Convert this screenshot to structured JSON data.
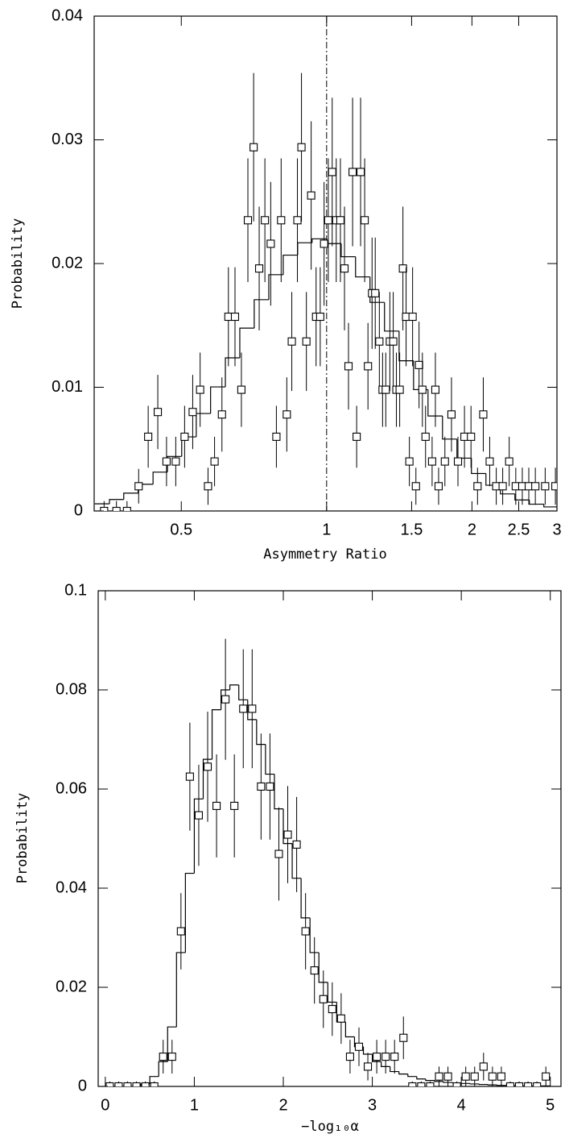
{
  "chart_data": [
    {
      "type": "errorbar",
      "xscale": "log",
      "x_label": "Asymmetry Ratio",
      "y_label": "Probability",
      "color": "#000000",
      "xlim": [
        0.33,
        3
      ],
      "ylim": [
        0,
        0.04
      ],
      "xticks": [
        0.5,
        1,
        1.5,
        2,
        2.5,
        3
      ],
      "yticks": [
        0,
        0.01,
        0.02,
        0.03,
        0.04
      ],
      "vline": 1,
      "x": [
        0.346,
        0.367,
        0.386,
        0.408,
        0.427,
        0.447,
        0.466,
        0.487,
        0.508,
        0.528,
        0.547,
        0.568,
        0.586,
        0.607,
        0.626,
        0.646,
        0.666,
        0.687,
        0.706,
        0.725,
        0.745,
        0.766,
        0.787,
        0.805,
        0.827,
        0.847,
        0.87,
        0.887,
        0.908,
        0.929,
        0.951,
        0.97,
        0.988,
        1.008,
        1.027,
        1.047,
        1.068,
        1.089,
        1.11,
        1.132,
        1.154,
        1.176,
        1.199,
        1.218,
        1.242,
        1.261,
        1.286,
        1.306,
        1.326,
        1.352,
        1.374,
        1.395,
        1.417,
        1.439,
        1.461,
        1.484,
        1.507,
        1.531,
        1.554,
        1.579,
        1.603,
        1.654,
        1.68,
        1.706,
        1.758,
        1.814,
        1.871,
        1.93,
        1.991,
        2.054,
        2.111,
        2.177,
        2.246,
        2.316,
        2.389,
        2.465,
        2.543,
        2.623,
        2.706,
        2.836,
        2.978
      ],
      "values": [
        0,
        0,
        0,
        0.002,
        0.006,
        0.008,
        0.004,
        0.004,
        0.006,
        0.008,
        0.0098,
        0.002,
        0.004,
        0.0078,
        0.0157,
        0.0157,
        0.0098,
        0.0235,
        0.0294,
        0.0196,
        0.0235,
        0.0216,
        0.006,
        0.0235,
        0.0078,
        0.0137,
        0.0235,
        0.0294,
        0.0137,
        0.0255,
        0.0157,
        0.0157,
        0.0216,
        0.0235,
        0.0274,
        0.0235,
        0.0235,
        0.0196,
        0.0117,
        0.0274,
        0.006,
        0.0274,
        0.0235,
        0.0117,
        0.0176,
        0.0176,
        0.0137,
        0.0098,
        0.0098,
        0.0137,
        0.0137,
        0.0098,
        0.0098,
        0.0196,
        0.0157,
        0.004,
        0.0157,
        0.002,
        0.0118,
        0.0098,
        0.006,
        0.004,
        0.0098,
        0.002,
        0.004,
        0.0078,
        0.004,
        0.006,
        0.006,
        0.002,
        0.0078,
        0.004,
        0.002,
        0.002,
        0.004,
        0.002,
        0.002,
        0.002,
        0.002,
        0.002,
        0.002
      ],
      "errors": [
        0.0008,
        0.0008,
        0.0008,
        0.0014,
        0.0025,
        0.003,
        0.002,
        0.002,
        0.0025,
        0.003,
        0.003,
        0.0015,
        0.002,
        0.003,
        0.004,
        0.004,
        0.003,
        0.005,
        0.006,
        0.005,
        0.005,
        0.005,
        0.0025,
        0.005,
        0.003,
        0.004,
        0.005,
        0.006,
        0.004,
        0.006,
        0.004,
        0.004,
        0.005,
        0.005,
        0.006,
        0.005,
        0.005,
        0.005,
        0.0035,
        0.006,
        0.0025,
        0.006,
        0.005,
        0.0035,
        0.0045,
        0.0045,
        0.004,
        0.003,
        0.003,
        0.004,
        0.004,
        0.003,
        0.003,
        0.005,
        0.004,
        0.002,
        0.004,
        0.0015,
        0.0035,
        0.003,
        0.0025,
        0.002,
        0.003,
        0.0015,
        0.002,
        0.003,
        0.002,
        0.0025,
        0.0025,
        0.0015,
        0.003,
        0.002,
        0.0015,
        0.0015,
        0.002,
        0.0015,
        0.0015,
        0.0015,
        0.0015,
        0.0015,
        0.0015
      ],
      "model": {
        "bins": [
          0.331,
          0.355,
          0.38,
          0.407,
          0.437,
          0.468,
          0.501,
          0.537,
          0.575,
          0.617,
          0.661,
          0.708,
          0.759,
          0.813,
          0.871,
          0.933,
          1.0,
          1.072,
          1.148,
          1.23,
          1.318,
          1.413,
          1.514,
          1.622,
          1.738,
          1.862,
          1.995,
          2.138,
          2.291,
          2.455,
          2.63,
          2.818,
          3.0
        ],
        "values": [
          0.00058,
          0.00093,
          0.00144,
          0.00216,
          0.00314,
          0.00441,
          0.00599,
          0.00788,
          0.01003,
          0.01238,
          0.01478,
          0.01708,
          0.0191,
          0.02068,
          0.02168,
          0.022,
          0.02161,
          0.02055,
          0.01892,
          0.01686,
          0.01454,
          0.01214,
          0.00981,
          0.00768,
          0.00581,
          0.00427,
          0.00303,
          0.00208,
          0.00138,
          0.00089,
          0.00055,
          0.00033
        ]
      }
    },
    {
      "type": "errorbar",
      "xscale": "linear",
      "x_label": "−log₁₀α",
      "y_label": "Probability",
      "color": "#000000",
      "xlim": [
        -0.08,
        5.12
      ],
      "ylim": [
        0,
        0.1
      ],
      "xticks": [
        0,
        1,
        2,
        3,
        4,
        5
      ],
      "yticks": [
        0,
        0.02,
        0.04,
        0.06,
        0.08,
        0.1
      ],
      "x": [
        0.05,
        0.15,
        0.25,
        0.35,
        0.45,
        0.55,
        0.65,
        0.75,
        0.85,
        0.95,
        1.05,
        1.15,
        1.25,
        1.35,
        1.45,
        1.55,
        1.65,
        1.75,
        1.85,
        1.95,
        2.05,
        2.15,
        2.25,
        2.35,
        2.45,
        2.55,
        2.65,
        2.75,
        2.85,
        2.95,
        3.05,
        3.15,
        3.25,
        3.35,
        3.45,
        3.55,
        3.65,
        3.75,
        3.85,
        3.95,
        4.05,
        4.15,
        4.25,
        4.35,
        4.45,
        4.55,
        4.65,
        4.75,
        4.85,
        4.95
      ],
      "values": [
        0,
        0,
        0,
        0,
        0,
        0,
        0.006,
        0.006,
        0.0313,
        0.0625,
        0.0547,
        0.0645,
        0.0566,
        0.0781,
        0.0566,
        0.0762,
        0.0762,
        0.0605,
        0.0605,
        0.0469,
        0.0508,
        0.0488,
        0.0313,
        0.0234,
        0.0176,
        0.0156,
        0.0137,
        0.006,
        0.008,
        0.004,
        0.006,
        0.006,
        0.006,
        0.0098,
        0,
        0,
        0,
        0.002,
        0.002,
        0,
        0.002,
        0.002,
        0.004,
        0.002,
        0.002,
        0,
        0,
        0,
        0,
        0.002
      ],
      "errors": [
        0.001,
        0.001,
        0.001,
        0.001,
        0.001,
        0.001,
        0.0034,
        0.0034,
        0.0077,
        0.0109,
        0.0102,
        0.0111,
        0.0104,
        0.0122,
        0.0104,
        0.012,
        0.012,
        0.0107,
        0.0107,
        0.0094,
        0.0098,
        0.0096,
        0.0077,
        0.0067,
        0.0058,
        0.0054,
        0.0051,
        0.0034,
        0.0039,
        0.0028,
        0.0034,
        0.0034,
        0.0034,
        0.0043,
        0.001,
        0.001,
        0.001,
        0.002,
        0.002,
        0.001,
        0.002,
        0.002,
        0.0028,
        0.002,
        0.002,
        0.001,
        0.001,
        0.001,
        0.001,
        0.002
      ],
      "model": {
        "bins": [
          0,
          0.1,
          0.2,
          0.3,
          0.4,
          0.5,
          0.6,
          0.7,
          0.8,
          0.9,
          1.0,
          1.1,
          1.2,
          1.3,
          1.4,
          1.5,
          1.6,
          1.7,
          1.8,
          1.9,
          2.0,
          2.1,
          2.2,
          2.3,
          2.4,
          2.5,
          2.6,
          2.7,
          2.8,
          2.9,
          3.0,
          3.1,
          3.2,
          3.3,
          3.4,
          3.5,
          3.6,
          3.7,
          3.8,
          3.9,
          4.0,
          4.1,
          4.2,
          4.3,
          4.4,
          4.5,
          4.6,
          4.7,
          4.8,
          4.9,
          5.0
        ],
        "values": [
          0,
          0,
          0,
          0,
          0.0005,
          0.002,
          0.005,
          0.012,
          0.027,
          0.043,
          0.058,
          0.066,
          0.076,
          0.08,
          0.081,
          0.078,
          0.074,
          0.069,
          0.063,
          0.056,
          0.049,
          0.042,
          0.034,
          0.027,
          0.021,
          0.017,
          0.013,
          0.01,
          0.008,
          0.0065,
          0.005,
          0.004,
          0.003,
          0.0025,
          0.002,
          0.0015,
          0.0012,
          0.001,
          0.0008,
          0.0007,
          0.0006,
          0.0005,
          0.0004,
          0.0003,
          0.0002,
          0.0002,
          0.0001,
          0.0001,
          0.0001,
          0.0001
        ]
      }
    }
  ]
}
